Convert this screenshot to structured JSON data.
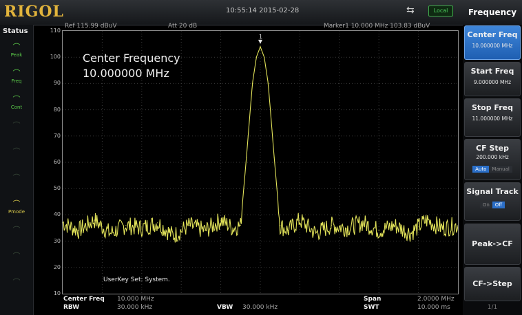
{
  "brand": {
    "logo": "RIGOL"
  },
  "topbar": {
    "datetime": "10:55:14 2015-02-28",
    "usb_icon": "usb-icon",
    "local_label": "Local"
  },
  "status": {
    "title": "Status",
    "items": [
      {
        "label": "Peak",
        "state": "on"
      },
      {
        "label": "Freq",
        "state": "on"
      },
      {
        "label": "Cont",
        "state": "on"
      },
      {
        "label": "",
        "state": "off"
      },
      {
        "label": "",
        "state": "off"
      },
      {
        "label": "",
        "state": "off"
      },
      {
        "label": "Pmode",
        "state": "yellow"
      },
      {
        "label": "",
        "state": "off"
      },
      {
        "label": "",
        "state": "off"
      },
      {
        "label": "",
        "state": "off"
      }
    ]
  },
  "plot_header": {
    "ref": "Ref 115.99 dBuV",
    "att": "Att  20 dB",
    "marker": "Marker1  10.000 MHz  103.83 dBuV"
  },
  "y_axis": {
    "ticks": [
      "110",
      "100",
      "90",
      "80",
      "70",
      "60",
      "50",
      "40",
      "30",
      "20",
      "10"
    ]
  },
  "overlay": {
    "line1": "Center Frequency",
    "line2": "10.000000 MHz",
    "marker_label": "1"
  },
  "userkey": "UserKey Set:   System.",
  "bottom": {
    "center_freq_label": "Center Freq",
    "center_freq_value": "10.000 MHz",
    "rbw_label": "RBW",
    "rbw_value": "30.000 kHz",
    "vbw_label": "VBW",
    "vbw_value": "30.000 kHz",
    "span_label": "Span",
    "span_value": "2.0000 MHz",
    "swt_label": "SWT",
    "swt_value": "10.000 ms"
  },
  "menu": {
    "title": "Frequency",
    "center_freq": {
      "label": "Center Freq",
      "value": "10.000000 MHz"
    },
    "start_freq": {
      "label": "Start Freq",
      "value": "9.000000 MHz"
    },
    "stop_freq": {
      "label": "Stop Freq",
      "value": "11.000000 MHz"
    },
    "cf_step": {
      "label": "CF Step",
      "value": "200.000 kHz",
      "auto": "Auto",
      "manual": "Manual"
    },
    "signal_track": {
      "label": "Signal Track",
      "on": "On",
      "off": "Off"
    },
    "peak_cf": {
      "label": "Peak->CF"
    },
    "cf_step_btn": {
      "label": "CF->Step"
    },
    "page": "1/1"
  },
  "colors": {
    "trace": "#e3e45a",
    "accent": "#2b6fc8",
    "logo": "#e2b43c"
  },
  "chart_data": {
    "type": "line",
    "xlabel": "",
    "ylabel": "",
    "xlim": [
      9.0,
      11.0
    ],
    "ylim": [
      10,
      110
    ],
    "series": [
      {
        "x": [
          9.0,
          9.08,
          9.16,
          9.24,
          9.32,
          9.4,
          9.48,
          9.56,
          9.64,
          9.72,
          9.8,
          9.86,
          9.9,
          9.93,
          9.96,
          9.98,
          10.0,
          10.02,
          10.04,
          10.07,
          10.1,
          10.14,
          10.2,
          10.28,
          10.36,
          10.44,
          10.52,
          10.6,
          10.68,
          10.76,
          10.84,
          10.92,
          11.0
        ],
        "y": [
          37,
          34,
          38,
          33,
          36,
          35,
          37,
          32,
          36,
          34,
          38,
          35,
          36,
          62,
          90,
          100,
          104,
          100,
          90,
          62,
          36,
          34,
          38,
          33,
          36,
          35,
          37,
          34,
          36,
          33,
          38,
          35,
          36
        ]
      }
    ]
  }
}
